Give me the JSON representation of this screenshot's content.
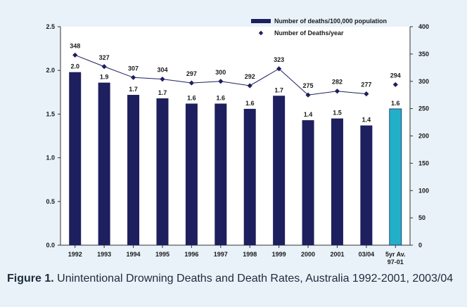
{
  "chart_data": {
    "type": "bar",
    "categories": [
      "1992",
      "1993",
      "1994",
      "1995",
      "1996",
      "1997",
      "1998",
      "1999",
      "2000",
      "2001",
      "03/04",
      "5yr Av.\n97-01"
    ],
    "series": [
      {
        "name": "Number of deaths/100,000 population",
        "type": "bar",
        "axis": "left",
        "values": [
          2.0,
          1.9,
          1.7,
          1.7,
          1.6,
          1.6,
          1.6,
          1.7,
          1.4,
          1.5,
          1.4,
          1.6
        ],
        "plotted_values": [
          1.98,
          1.86,
          1.72,
          1.68,
          1.62,
          1.62,
          1.56,
          1.71,
          1.43,
          1.45,
          1.37,
          1.56
        ],
        "labels": [
          "2.0",
          "1.9",
          "1.7",
          "1.7",
          "1.6",
          "1.6",
          "1.6",
          "1.7",
          "1.4",
          "1.5",
          "1.4",
          "1.6"
        ],
        "color": "#1d1f5e",
        "highlight_color": "#22b0c9"
      },
      {
        "name": "Number of Deaths/year",
        "type": "line",
        "axis": "right",
        "values": [
          348,
          327,
          307,
          304,
          297,
          300,
          292,
          323,
          275,
          282,
          277,
          294
        ],
        "labels": [
          "348",
          "327",
          "307",
          "304",
          "297",
          "300",
          "292",
          "323",
          "275",
          "282",
          "277",
          "294"
        ],
        "color": "#1d1f5e"
      }
    ],
    "left_axis": {
      "ylim": [
        0,
        2.5
      ],
      "ticks": [
        "0.0",
        "0.5",
        "1.0",
        "1.5",
        "2.0",
        "2.5"
      ]
    },
    "right_axis": {
      "ylim": [
        0,
        400
      ],
      "ticks": [
        "0",
        "50",
        "100",
        "150",
        "200",
        "250",
        "300",
        "350",
        "400"
      ]
    },
    "legend_position": "top-right"
  },
  "caption": {
    "label": "Figure 1.",
    "text": " Unintentional Drowning Deaths and Death Rates, Australia 1992-2001, 2003/04"
  }
}
